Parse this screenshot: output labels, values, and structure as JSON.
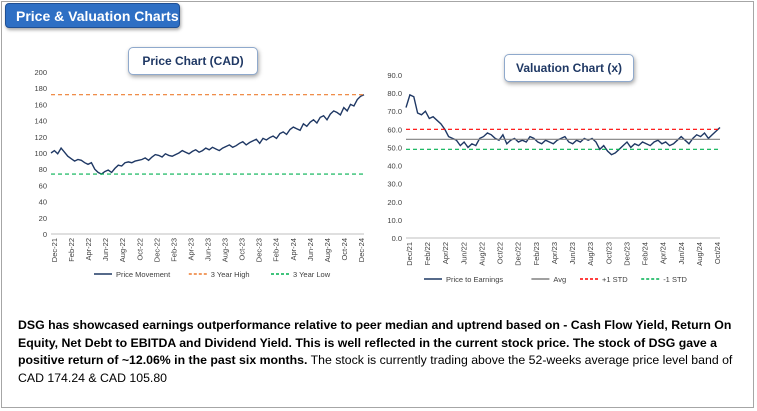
{
  "header": {
    "title": "Price & Valuation Charts"
  },
  "chart_data": [
    {
      "type": "line",
      "title": "Price Chart (CAD)",
      "ylim": [
        0,
        200
      ],
      "yticks": [
        "0",
        "20",
        "40",
        "60",
        "80",
        "100",
        "120",
        "140",
        "160",
        "180",
        "200"
      ],
      "x_labels": [
        "Dec-21",
        "Feb-22",
        "Apr-22",
        "Jun-22",
        "Aug-22",
        "Oct-22",
        "Dec-22",
        "Feb-23",
        "Apr-23",
        "Jun-23",
        "Aug-23",
        "Oct-23",
        "Dec-23",
        "Feb-24",
        "Apr-24",
        "Jun-24",
        "Aug-24",
        "Oct-24",
        "Dec-24"
      ],
      "series": [
        {
          "name": "Price Movement",
          "color": "#1f3864",
          "style": "solid",
          "values": [
            100,
            103,
            99,
            106,
            101,
            96,
            93,
            90,
            92,
            91,
            88,
            86,
            88,
            80,
            76,
            74,
            77,
            79,
            76,
            81,
            85,
            84,
            88,
            89,
            88,
            90,
            91,
            92,
            94,
            91,
            95,
            98,
            97,
            95,
            99,
            97,
            96,
            98,
            100,
            103,
            101,
            99,
            102,
            104,
            101,
            103,
            106,
            104,
            107,
            105,
            103,
            106,
            108,
            110,
            107,
            109,
            112,
            114,
            110,
            113,
            115,
            117,
            112,
            118,
            116,
            119,
            121,
            118,
            124,
            126,
            123,
            129,
            132,
            130,
            128,
            136,
            133,
            138,
            141,
            137,
            144,
            146,
            141,
            148,
            152,
            150,
            147,
            156,
            152,
            160,
            158,
            166,
            170,
            172
          ]
        },
        {
          "name": "3 Year High",
          "color": "#ed7d31",
          "style": "dashed",
          "values": [
            172,
            172
          ]
        },
        {
          "name": "3 Year Low",
          "color": "#00b050",
          "style": "dashed",
          "values": [
            74,
            74
          ]
        }
      ]
    },
    {
      "type": "line",
      "title": "Valuation Chart (x)",
      "ylim": [
        0,
        90
      ],
      "yticks": [
        "0.0",
        "10.0",
        "20.0",
        "30.0",
        "40.0",
        "50.0",
        "60.0",
        "70.0",
        "80.0",
        "90.0"
      ],
      "x_labels": [
        "Dec/21",
        "Feb/22",
        "Apr/22",
        "Jun/22",
        "Aug/22",
        "Oct/22",
        "Dec/22",
        "Feb/23",
        "Apr/23",
        "Jun/23",
        "Aug/23",
        "Oct/23",
        "Dec/23",
        "Feb/24",
        "Apr/24",
        "Jun/24",
        "Aug/24",
        "Oct/24"
      ],
      "series": [
        {
          "name": "Price to Earnings",
          "color": "#1f3864",
          "style": "solid",
          "values": [
            72,
            79,
            78,
            69,
            68,
            70,
            66,
            67,
            65,
            63,
            60,
            56,
            55,
            54,
            51,
            53,
            50,
            52,
            51,
            55,
            56,
            58,
            57,
            55,
            54,
            57,
            52,
            54,
            55,
            53,
            54,
            53,
            56,
            55,
            53,
            52,
            54,
            53,
            52,
            54,
            55,
            56,
            53,
            52,
            54,
            53,
            55,
            54,
            55,
            53,
            49,
            51,
            48,
            46,
            47,
            49,
            51,
            53,
            50,
            52,
            51,
            53,
            52,
            51,
            53,
            54,
            52,
            53,
            51,
            52,
            54,
            56,
            54,
            52,
            55,
            57,
            56,
            58,
            55,
            57,
            59,
            61
          ]
        },
        {
          "name": "Avg",
          "color": "#808080",
          "style": "solid",
          "values": [
            54.5,
            54.5
          ]
        },
        {
          "name": "+1 STD",
          "color": "#ff0000",
          "style": "dashed",
          "values": [
            60,
            60
          ]
        },
        {
          "name": "-1 STD",
          "color": "#00b050",
          "style": "dashed",
          "values": [
            49,
            49
          ]
        }
      ]
    }
  ],
  "description": {
    "bold": "DSG has showcased earnings outperformance relative to peer median and uptrend based on - Cash Flow Yield, Return On Equity, Net Debt to EBITDA and Dividend Yield. This is well reflected in the current stock price. The stock of DSG gave a positive return of ~12.06% in the past six months.",
    "normal": " The stock is currently trading above  the 52-weeks average price level band of CAD 174.24 & CAD 105.80"
  }
}
